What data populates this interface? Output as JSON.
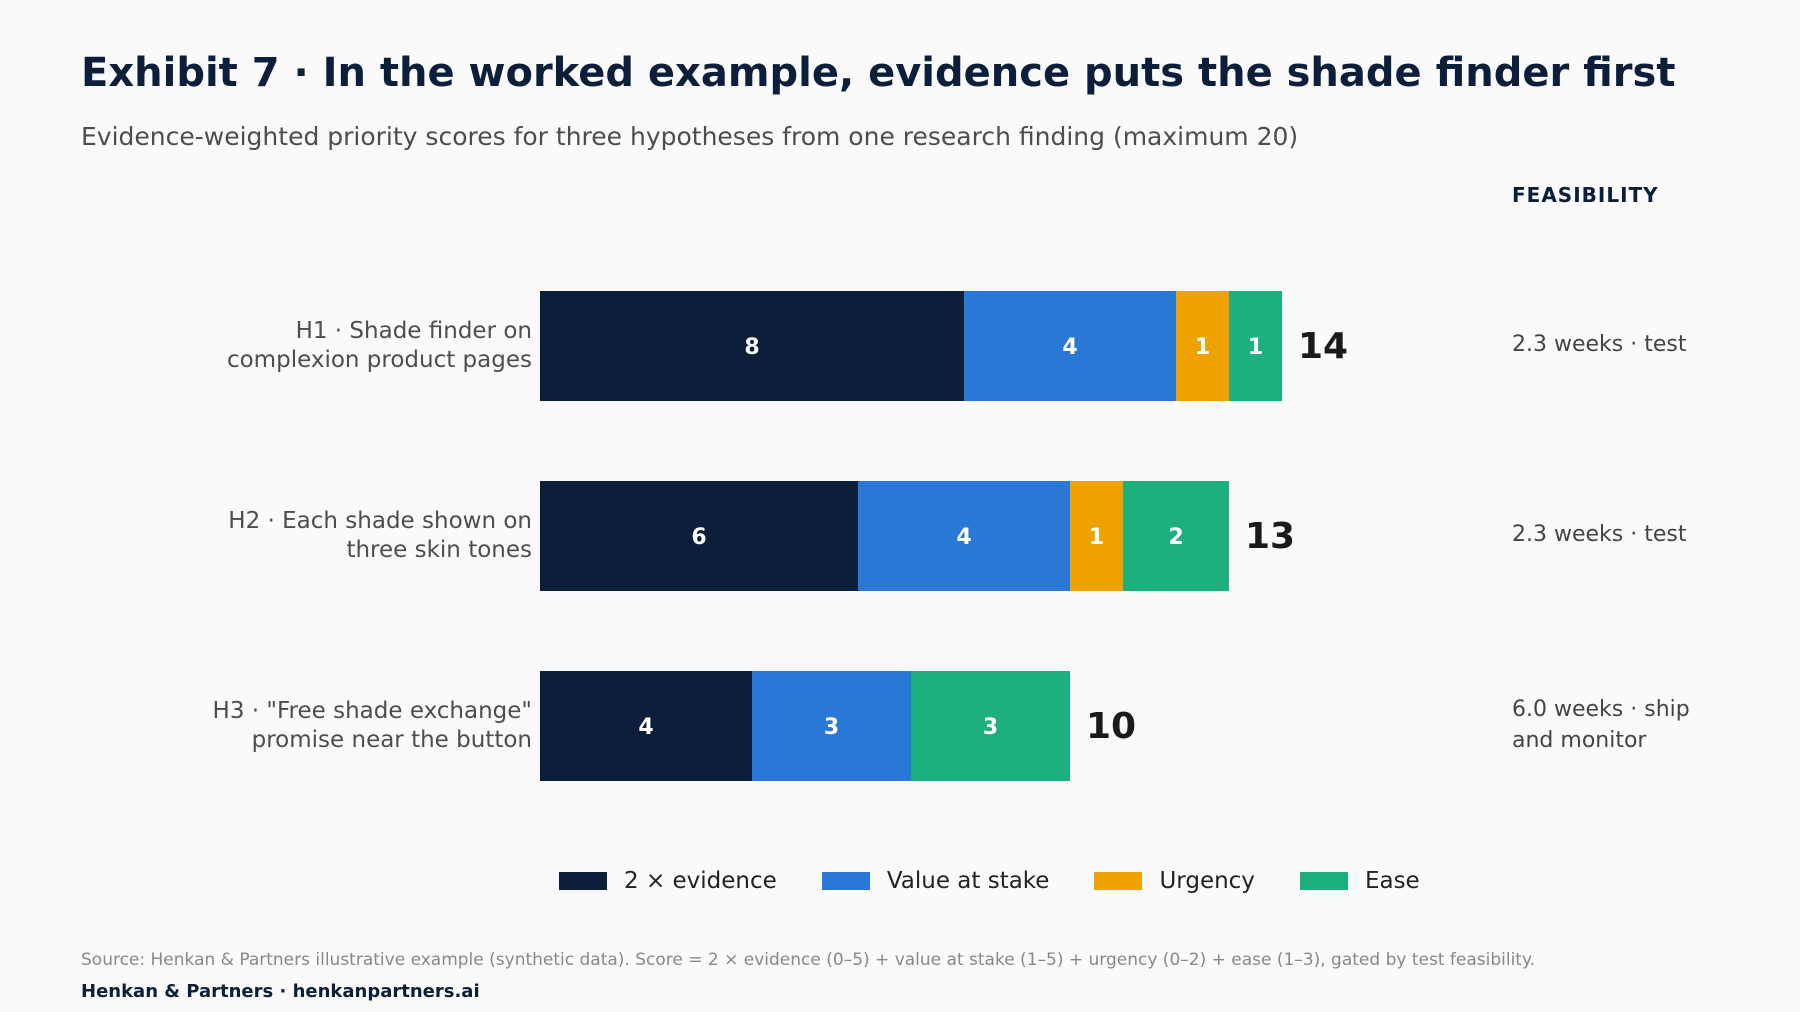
{
  "header": {
    "title": "Exhibit 7 · In the worked example, evidence puts the shade finder first",
    "subtitle": "Evidence-weighted priority scores for three hypotheses from one research finding (maximum 20)"
  },
  "feasibility": {
    "header": "FEASIBILITY",
    "rows": [
      "2.3 weeks · test",
      "2.3 weeks · test",
      "6.0 weeks · ship and monitor"
    ]
  },
  "chart_data": {
    "type": "bar",
    "orientation": "horizontal",
    "stacked": true,
    "categories": [
      "H1 · Shade finder on complexion product pages",
      "H2 · Each shade shown on three skin tones",
      "H3 · \"Free shade exchange\" promise near the button"
    ],
    "series": [
      {
        "name": "2 × evidence",
        "color": "#0b1f3a",
        "values": [
          8,
          6,
          4
        ]
      },
      {
        "name": "Value at stake",
        "color": "#2a78d6",
        "values": [
          4,
          4,
          3
        ]
      },
      {
        "name": "Urgency",
        "color": "#eda200",
        "values": [
          1,
          1,
          0
        ]
      },
      {
        "name": "Ease",
        "color": "#1db07c",
        "values": [
          1,
          2,
          3
        ]
      }
    ],
    "totals": [
      14,
      13,
      10
    ],
    "xlim": [
      0,
      20
    ],
    "grid": false,
    "legend_position": "bottom"
  },
  "footer": {
    "source": "Source: Henkan & Partners illustrative example (synthetic data). Score = 2 × evidence (0–5) + value at stake (1–5) + urgency (0–2) + ease (1–3), gated by test feasibility.",
    "brand": "Henkan & Partners · henkanpartners.ai"
  }
}
